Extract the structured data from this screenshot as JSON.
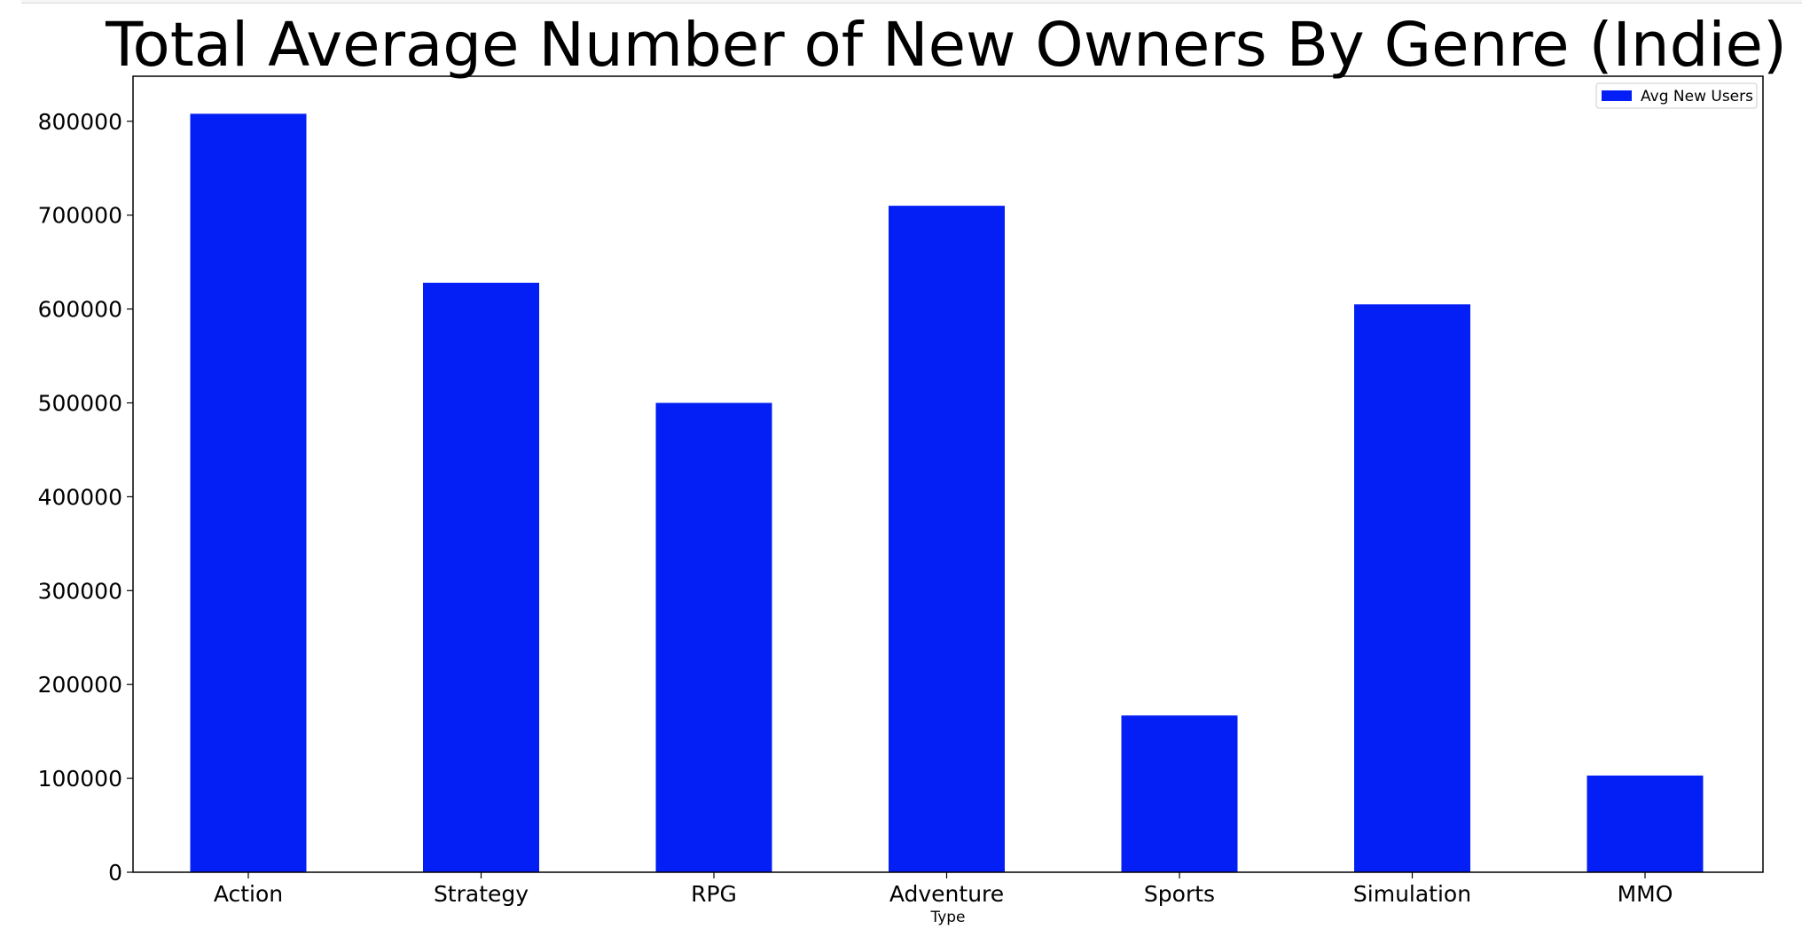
{
  "chart_data": {
    "type": "bar",
    "title": "Total Average Number of New Owners By Genre (Indie)",
    "xlabel": "Type",
    "ylabel": "",
    "categories": [
      "Action",
      "Strategy",
      "RPG",
      "Adventure",
      "Sports",
      "Simulation",
      "MMO"
    ],
    "series": [
      {
        "name": "Avg New Users",
        "values": [
          808000,
          628000,
          500000,
          710000,
          167000,
          605000,
          103000
        ]
      }
    ],
    "ylim": [
      0,
      848000
    ],
    "yticks": [
      0,
      100000,
      200000,
      300000,
      400000,
      500000,
      600000,
      700000,
      800000
    ],
    "grid": false,
    "legend_position": "top-right",
    "bar_color": "#031ff5"
  }
}
